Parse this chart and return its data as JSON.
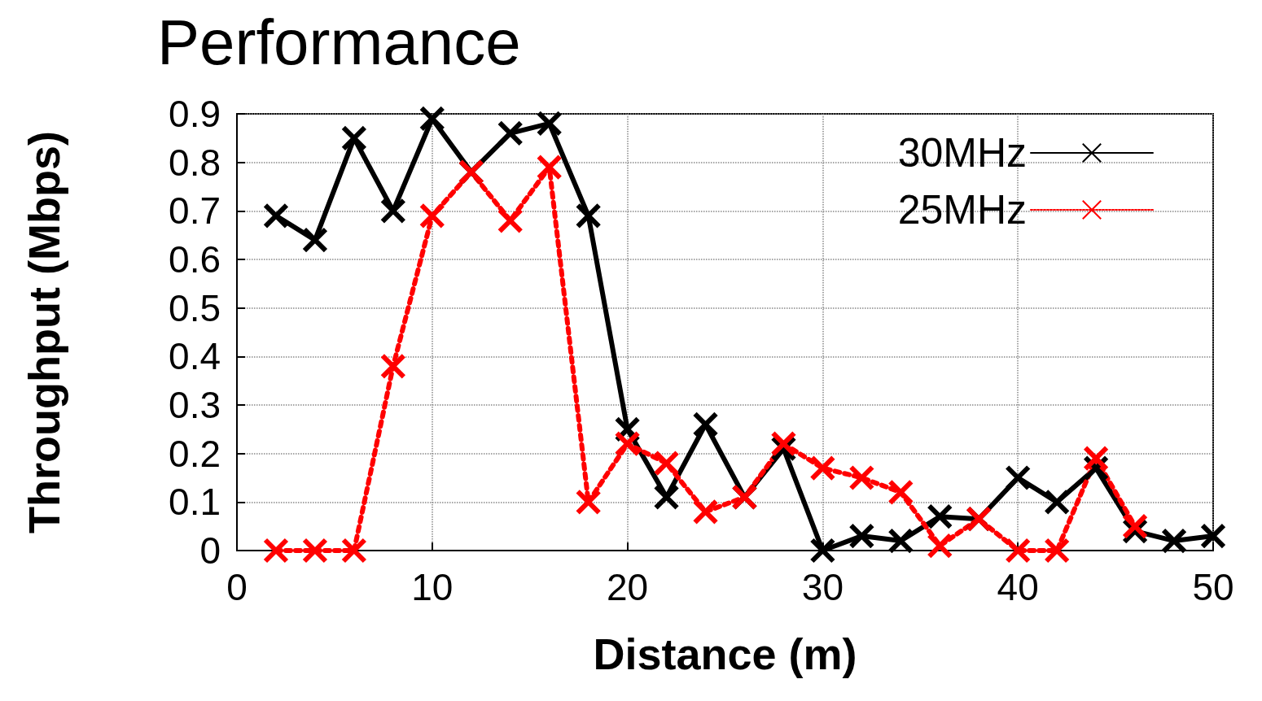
{
  "chart_data": {
    "type": "line",
    "title": "Performance",
    "xlabel": "Distance (m)",
    "ylabel": "Throughput (Mbps)",
    "xlim": [
      0,
      50
    ],
    "xticks": [
      0,
      10,
      20,
      30,
      40,
      50
    ],
    "ylim": [
      0,
      0.9
    ],
    "yticks": [
      0,
      0.1,
      0.2,
      0.3,
      0.4,
      0.5,
      0.6,
      0.7,
      0.8,
      0.9
    ],
    "grid": true,
    "legend": "top right",
    "series": [
      {
        "name": "30MHz",
        "color": "#000000",
        "marker": "cross",
        "line_style": "solid",
        "x": [
          2,
          4,
          6,
          8,
          10,
          12,
          14,
          16,
          18,
          20,
          22,
          24,
          26,
          28,
          30,
          32,
          34,
          36,
          38,
          40,
          42,
          44,
          46,
          48,
          50
        ],
        "values": [
          0.69,
          0.64,
          0.85,
          0.7,
          0.89,
          0.78,
          0.86,
          0.88,
          0.69,
          0.25,
          0.11,
          0.26,
          0.11,
          0.21,
          0,
          0.03,
          0.02,
          0.07,
          0.065,
          0.15,
          0.1,
          0.17,
          0.04,
          0.02,
          0.03
        ]
      },
      {
        "name": "25MHz",
        "color": "#ff0000",
        "marker": "cross",
        "line_style": "dotted",
        "x": [
          2,
          4,
          6,
          8,
          10,
          12,
          14,
          16,
          18,
          20,
          22,
          24,
          26,
          28,
          30,
          32,
          34,
          36,
          38,
          40,
          42,
          44,
          46
        ],
        "values": [
          0,
          0,
          0,
          0.38,
          0.69,
          0.78,
          0.68,
          0.79,
          0.1,
          0.22,
          0.18,
          0.08,
          0.11,
          0.22,
          0.17,
          0.15,
          0.12,
          0.01,
          0.065,
          0,
          0,
          0.19,
          0.05
        ]
      }
    ]
  }
}
